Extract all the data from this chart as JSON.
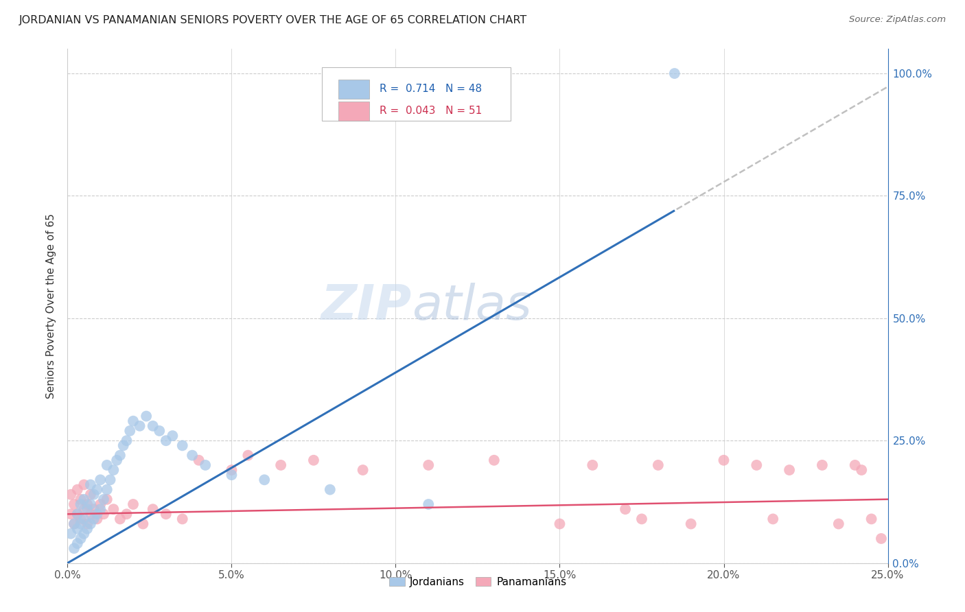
{
  "title": "JORDANIAN VS PANAMANIAN SENIORS POVERTY OVER THE AGE OF 65 CORRELATION CHART",
  "source": "Source: ZipAtlas.com",
  "ylabel_label": "Seniors Poverty Over the Age of 65",
  "xlim": [
    0.0,
    0.25
  ],
  "ylim": [
    0.0,
    1.05
  ],
  "jordanian_R": 0.714,
  "jordanian_N": 48,
  "panamanian_R": 0.043,
  "panamanian_N": 51,
  "jordanian_color": "#a8c8e8",
  "panamanian_color": "#f4a8b8",
  "jordanian_line_color": "#3070b8",
  "panamanian_line_color": "#e05070",
  "trendline_extension_color": "#c0c0c0",
  "watermark_zip": "ZIP",
  "watermark_atlas": "atlas",
  "jordanian_x": [
    0.001,
    0.002,
    0.002,
    0.003,
    0.003,
    0.003,
    0.004,
    0.004,
    0.004,
    0.005,
    0.005,
    0.005,
    0.006,
    0.006,
    0.007,
    0.007,
    0.007,
    0.008,
    0.008,
    0.009,
    0.009,
    0.01,
    0.01,
    0.011,
    0.012,
    0.012,
    0.013,
    0.014,
    0.015,
    0.016,
    0.017,
    0.018,
    0.019,
    0.02,
    0.022,
    0.024,
    0.026,
    0.028,
    0.03,
    0.032,
    0.035,
    0.038,
    0.042,
    0.05,
    0.06,
    0.08,
    0.11,
    0.185
  ],
  "jordanian_y": [
    0.06,
    0.03,
    0.08,
    0.04,
    0.07,
    0.1,
    0.05,
    0.08,
    0.12,
    0.06,
    0.09,
    0.13,
    0.07,
    0.11,
    0.08,
    0.12,
    0.16,
    0.09,
    0.14,
    0.1,
    0.15,
    0.11,
    0.17,
    0.13,
    0.15,
    0.2,
    0.17,
    0.19,
    0.21,
    0.22,
    0.24,
    0.25,
    0.27,
    0.29,
    0.28,
    0.3,
    0.28,
    0.27,
    0.25,
    0.26,
    0.24,
    0.22,
    0.2,
    0.18,
    0.17,
    0.15,
    0.12,
    1.0
  ],
  "panamanian_x": [
    0.001,
    0.001,
    0.002,
    0.002,
    0.003,
    0.003,
    0.004,
    0.004,
    0.005,
    0.005,
    0.006,
    0.006,
    0.007,
    0.007,
    0.008,
    0.009,
    0.01,
    0.011,
    0.012,
    0.014,
    0.016,
    0.018,
    0.02,
    0.023,
    0.026,
    0.03,
    0.035,
    0.04,
    0.05,
    0.055,
    0.065,
    0.075,
    0.09,
    0.11,
    0.13,
    0.15,
    0.16,
    0.17,
    0.175,
    0.18,
    0.19,
    0.2,
    0.21,
    0.215,
    0.22,
    0.23,
    0.235,
    0.24,
    0.242,
    0.245,
    0.248
  ],
  "panamanian_y": [
    0.1,
    0.14,
    0.08,
    0.12,
    0.1,
    0.15,
    0.09,
    0.13,
    0.11,
    0.16,
    0.08,
    0.12,
    0.1,
    0.14,
    0.11,
    0.09,
    0.12,
    0.1,
    0.13,
    0.11,
    0.09,
    0.1,
    0.12,
    0.08,
    0.11,
    0.1,
    0.09,
    0.21,
    0.19,
    0.22,
    0.2,
    0.21,
    0.19,
    0.2,
    0.21,
    0.08,
    0.2,
    0.11,
    0.09,
    0.2,
    0.08,
    0.21,
    0.2,
    0.09,
    0.19,
    0.2,
    0.08,
    0.2,
    0.19,
    0.09,
    0.05
  ],
  "x_ticks": [
    0.0,
    0.05,
    0.1,
    0.15,
    0.2,
    0.25
  ],
  "x_tick_labels": [
    "0.0%",
    "5.0%",
    "10.0%",
    "15.0%",
    "20.0%",
    "25.0%"
  ],
  "y_ticks": [
    0.0,
    0.25,
    0.5,
    0.75,
    1.0
  ],
  "y_tick_labels_right": [
    "0.0%",
    "25.0%",
    "50.0%",
    "75.0%",
    "100.0%"
  ]
}
